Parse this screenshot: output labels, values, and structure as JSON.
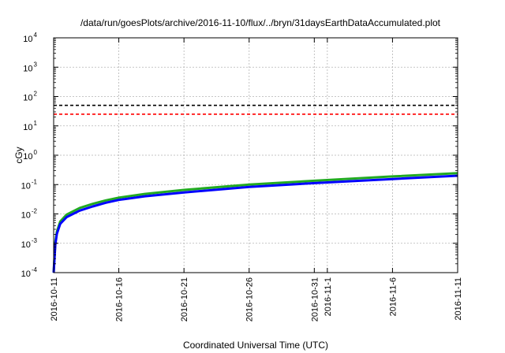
{
  "chart_data": {
    "type": "line",
    "title": "/data/run/goesPlots/archive/2016-11-10/flux/../bryn/31daysEarthDataAccumulated.plot",
    "xlabel": "Coordinated Universal Time (UTC)",
    "ylabel": "cGy",
    "y_scale": "log",
    "ylim": [
      "1e-4",
      "1e4"
    ],
    "xlim": [
      "2016-10-11",
      "2016-11-11"
    ],
    "grid": true,
    "x_ticks": [
      {
        "date": "2016-10-11",
        "label": "2016-10-11"
      },
      {
        "date": "2016-10-16",
        "label": "2016-10-16"
      },
      {
        "date": "2016-10-21",
        "label": "2016-10-21"
      },
      {
        "date": "2016-10-26",
        "label": "2016-10-26"
      },
      {
        "date": "2016-10-31",
        "label": "2016-10-31"
      },
      {
        "date": "2016-11-01",
        "label": "2016-11-1"
      },
      {
        "date": "2016-11-06",
        "label": "2016-11-6"
      },
      {
        "date": "2016-11-11",
        "label": "2016-11-11"
      }
    ],
    "y_ticks": [
      {
        "value": 0.0001,
        "base": "10",
        "exp": "-4"
      },
      {
        "value": 0.001,
        "base": "10",
        "exp": "-3"
      },
      {
        "value": 0.01,
        "base": "10",
        "exp": "-2"
      },
      {
        "value": 0.1,
        "base": "10",
        "exp": "-1"
      },
      {
        "value": 1,
        "base": "10",
        "exp": "0"
      },
      {
        "value": 10,
        "base": "10",
        "exp": "1"
      },
      {
        "value": 100,
        "base": "10",
        "exp": "2"
      },
      {
        "value": 1000,
        "base": "10",
        "exp": "3"
      },
      {
        "value": 10000,
        "base": "10",
        "exp": "4"
      }
    ],
    "thresholds": [
      {
        "value": 50,
        "color": "#000000",
        "style": "dashed"
      },
      {
        "value": 25,
        "color": "#ff0000",
        "style": "dashed"
      }
    ],
    "series": [
      {
        "color": "#22aa22",
        "x": [
          "2016-10-11T00:00",
          "2016-10-11T03:00",
          "2016-10-11T06:00",
          "2016-10-11T12:00",
          "2016-10-12",
          "2016-10-13",
          "2016-10-14",
          "2016-10-15",
          "2016-10-16",
          "2016-10-18",
          "2016-10-21",
          "2016-10-26",
          "2016-10-31",
          "2016-11-06",
          "2016-11-11"
        ],
        "y": [
          0.0001,
          0.0011,
          0.0025,
          0.0055,
          0.0095,
          0.016,
          0.022,
          0.029,
          0.036,
          0.048,
          0.066,
          0.1,
          0.135,
          0.19,
          0.245
        ]
      },
      {
        "color": "#0000ff",
        "x": [
          "2016-10-11T00:00",
          "2016-10-11T03:00",
          "2016-10-11T06:00",
          "2016-10-11T12:00",
          "2016-10-12",
          "2016-10-13",
          "2016-10-14",
          "2016-10-15",
          "2016-10-16",
          "2016-10-18",
          "2016-10-21",
          "2016-10-26",
          "2016-10-31",
          "2016-11-06",
          "2016-11-11"
        ],
        "y": [
          0.0001,
          0.0009,
          0.0021,
          0.0046,
          0.0078,
          0.013,
          0.018,
          0.024,
          0.03,
          0.04,
          0.054,
          0.083,
          0.112,
          0.155,
          0.2
        ]
      }
    ]
  }
}
